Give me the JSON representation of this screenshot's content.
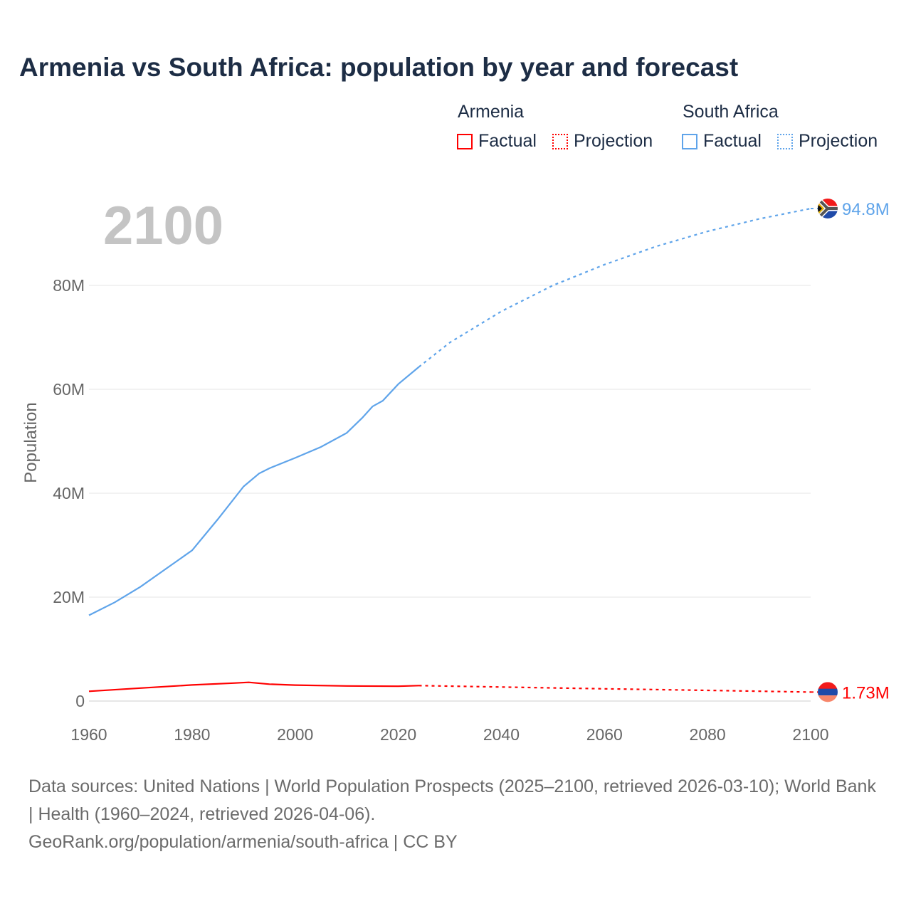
{
  "title": "Armenia vs South Africa: population by year and forecast",
  "legend": {
    "groups": [
      {
        "name": "Armenia",
        "color": "#ff0000",
        "factual": "Factual",
        "projection": "Projection"
      },
      {
        "name": "South Africa",
        "color": "#5fa4ea",
        "factual": "Factual",
        "projection": "Projection"
      }
    ]
  },
  "year_watermark": "2100",
  "footer": {
    "line1": "Data sources: United Nations | World Population Prospects (2025–2100, retrieved 2026-03-10); World Bank | Health (1960–2024, retrieved 2026-04-06).",
    "line2": "GeoRank.org/population/armenia/south-africa | CC BY"
  },
  "chart_data": {
    "type": "line",
    "title": "Armenia vs South Africa: population by year and forecast",
    "xlabel": "",
    "ylabel": "Population",
    "xlim": [
      1960,
      2100
    ],
    "ylim": [
      0,
      100
    ],
    "x_ticks": [
      "1960",
      "1980",
      "2000",
      "2020",
      "2040",
      "2060",
      "2080",
      "2100"
    ],
    "y_ticks": [
      {
        "v": 0,
        "label": "0"
      },
      {
        "v": 20,
        "label": "20M"
      },
      {
        "v": 40,
        "label": "40M"
      },
      {
        "v": 60,
        "label": "60M"
      },
      {
        "v": 80,
        "label": "80M"
      }
    ],
    "grid": true,
    "series": [
      {
        "name": "South Africa",
        "color": "#5fa4ea",
        "end_label": "94.8M",
        "factual": [
          [
            1960,
            16.5
          ],
          [
            1965,
            19
          ],
          [
            1970,
            22
          ],
          [
            1975,
            25.5
          ],
          [
            1980,
            29
          ],
          [
            1985,
            35
          ],
          [
            1990,
            41.3
          ],
          [
            1993,
            43.8
          ],
          [
            1995,
            44.8
          ],
          [
            2000,
            46.8
          ],
          [
            2005,
            48.9
          ],
          [
            2010,
            51.6
          ],
          [
            2013,
            54.5
          ],
          [
            2015,
            56.7
          ],
          [
            2017,
            57.8
          ],
          [
            2020,
            61
          ],
          [
            2024,
            64.3
          ]
        ],
        "projection": [
          [
            2024,
            64.3
          ],
          [
            2030,
            69
          ],
          [
            2040,
            75
          ],
          [
            2050,
            80
          ],
          [
            2060,
            84
          ],
          [
            2070,
            87.5
          ],
          [
            2080,
            90.4
          ],
          [
            2090,
            92.8
          ],
          [
            2100,
            94.8
          ]
        ]
      },
      {
        "name": "Armenia",
        "color": "#ff0000",
        "end_label": "1.73M",
        "factual": [
          [
            1960,
            1.87
          ],
          [
            1970,
            2.5
          ],
          [
            1980,
            3.1
          ],
          [
            1988,
            3.45
          ],
          [
            1991,
            3.6
          ],
          [
            1995,
            3.25
          ],
          [
            2000,
            3.07
          ],
          [
            2010,
            2.9
          ],
          [
            2020,
            2.85
          ],
          [
            2024,
            2.97
          ]
        ],
        "projection": [
          [
            2024,
            2.97
          ],
          [
            2040,
            2.7
          ],
          [
            2060,
            2.35
          ],
          [
            2080,
            2.05
          ],
          [
            2100,
            1.73
          ]
        ]
      }
    ]
  }
}
